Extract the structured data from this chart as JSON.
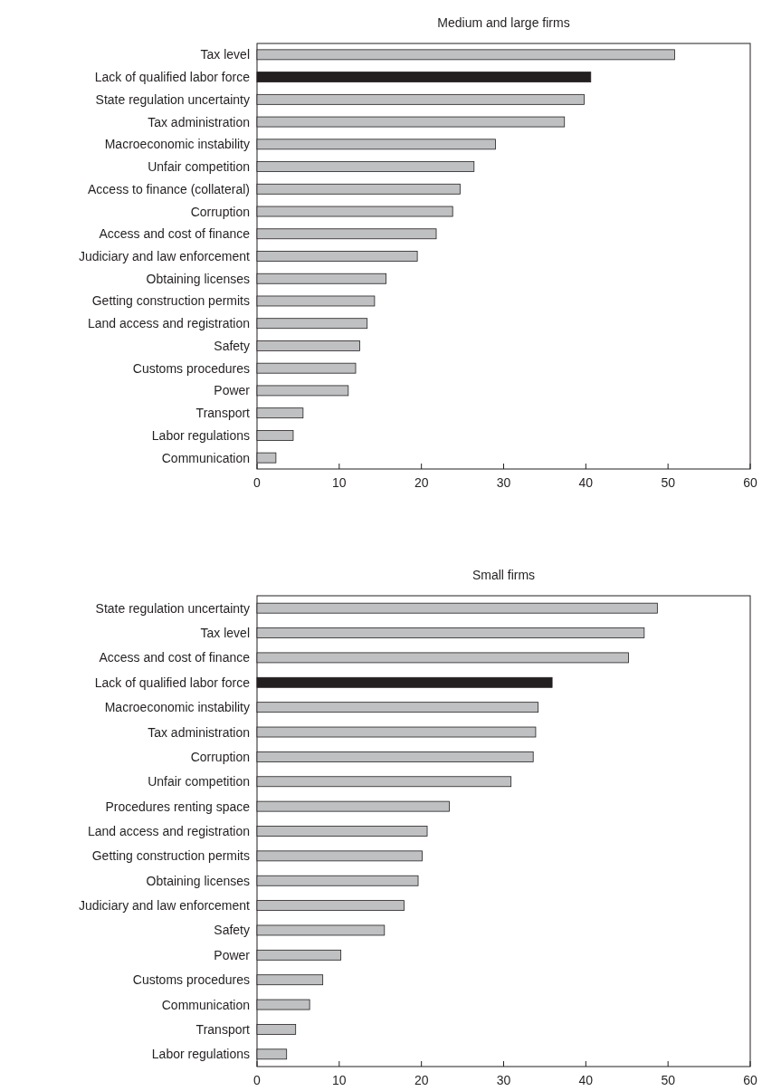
{
  "chart_data": [
    {
      "type": "bar",
      "orientation": "horizontal",
      "title": "Medium and large firms",
      "categories": [
        "Tax level",
        "Lack of qualified labor force",
        "State regulation uncertainty",
        "Tax administration",
        "Macroeconomic instability",
        "Unfair competition",
        "Access to finance (collateral)",
        "Corruption",
        "Access and cost of finance",
        "Judiciary and law enforcement",
        "Obtaining licenses",
        "Getting construction permits",
        "Land access and registration",
        "Safety",
        "Customs procedures",
        "Power",
        "Transport",
        "Labor regulations",
        "Communication"
      ],
      "values": [
        50.8,
        40.6,
        39.8,
        37.4,
        29.0,
        26.4,
        24.7,
        23.8,
        21.8,
        19.5,
        15.7,
        14.3,
        13.4,
        12.5,
        12.0,
        11.1,
        5.6,
        4.4,
        2.3
      ],
      "colors": [
        "#bfc0c2",
        "#231f20",
        "#bfc0c2",
        "#bfc0c2",
        "#bfc0c2",
        "#bfc0c2",
        "#bfc0c2",
        "#bfc0c2",
        "#bfc0c2",
        "#bfc0c2",
        "#bfc0c2",
        "#bfc0c2",
        "#bfc0c2",
        "#bfc0c2",
        "#bfc0c2",
        "#bfc0c2",
        "#bfc0c2",
        "#bfc0c2",
        "#bfc0c2"
      ],
      "xlim": [
        0,
        60
      ],
      "xticks": [
        0,
        10,
        20,
        30,
        40,
        50,
        60
      ]
    },
    {
      "type": "bar",
      "orientation": "horizontal",
      "title": "Small firms",
      "categories": [
        "State regulation uncertainty",
        "Tax level",
        "Access and cost of finance",
        "Lack of qualified labor force",
        "Macroeconomic instability",
        "Tax administration",
        "Corruption",
        "Unfair competition",
        "Procedures renting space",
        "Land access and registration",
        "Getting construction permits",
        "Obtaining licenses",
        "Judiciary and law enforcement",
        "Safety",
        "Power",
        "Customs procedures",
        "Communication",
        "Transport",
        "Labor regulations"
      ],
      "values": [
        48.7,
        47.1,
        45.2,
        35.9,
        34.2,
        33.9,
        33.6,
        30.9,
        23.4,
        20.7,
        20.1,
        19.6,
        17.9,
        15.5,
        10.2,
        8.0,
        6.4,
        4.7,
        3.6
      ],
      "colors": [
        "#bfc0c2",
        "#bfc0c2",
        "#bfc0c2",
        "#231f20",
        "#bfc0c2",
        "#bfc0c2",
        "#bfc0c2",
        "#bfc0c2",
        "#bfc0c2",
        "#bfc0c2",
        "#bfc0c2",
        "#bfc0c2",
        "#bfc0c2",
        "#bfc0c2",
        "#bfc0c2",
        "#bfc0c2",
        "#bfc0c2",
        "#bfc0c2",
        "#bfc0c2"
      ],
      "xlim": [
        0,
        60
      ],
      "xticks": [
        0,
        10,
        20,
        30,
        40,
        50,
        60
      ]
    }
  ]
}
